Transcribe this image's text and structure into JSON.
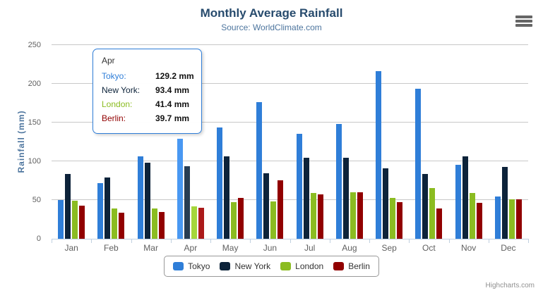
{
  "chart_data": {
    "type": "bar",
    "title": "Monthly Average Rainfall",
    "subtitle": "Source: WorldClimate.com",
    "xlabel": "",
    "ylabel": "Rainfall (mm)",
    "ylim": [
      0,
      250
    ],
    "y_ticks": [
      0,
      50,
      100,
      150,
      200,
      250
    ],
    "grid": true,
    "legend_position": "bottom",
    "categories": [
      "Jan",
      "Feb",
      "Mar",
      "Apr",
      "May",
      "Jun",
      "Jul",
      "Aug",
      "Sep",
      "Oct",
      "Nov",
      "Dec"
    ],
    "series": [
      {
        "name": "Tokyo",
        "color": "#2f7ed8",
        "hover_color": "#4998f2",
        "values": [
          49.9,
          71.5,
          106.4,
          129.2,
          144.0,
          176.0,
          135.6,
          148.5,
          216.4,
          194.1,
          95.6,
          54.4
        ]
      },
      {
        "name": "New York",
        "color": "#0d233a",
        "hover_color": "#273d54",
        "values": [
          83.6,
          78.8,
          98.5,
          93.4,
          106.0,
          84.5,
          105.0,
          104.3,
          91.2,
          83.5,
          106.6,
          92.3
        ]
      },
      {
        "name": "London",
        "color": "#8bbc21",
        "hover_color": "#a5d63b",
        "values": [
          48.9,
          38.8,
          39.3,
          41.4,
          47.0,
          48.3,
          59.0,
          59.6,
          52.4,
          65.2,
          59.3,
          51.2
        ]
      },
      {
        "name": "Berlin",
        "color": "#910000",
        "hover_color": "#ab1a1a",
        "values": [
          42.4,
          33.2,
          34.5,
          39.7,
          52.6,
          75.5,
          57.4,
          60.4,
          47.6,
          39.1,
          46.8,
          51.1
        ]
      }
    ],
    "hovered_category_index": 3,
    "hovered_category": "Apr"
  },
  "tooltip": {
    "header": "Apr",
    "rows": [
      {
        "label": "Tokyo:",
        "value": "129.2 mm",
        "color": "#2f7ed8"
      },
      {
        "label": "New York:",
        "value": "93.4 mm",
        "color": "#0d233a"
      },
      {
        "label": "London:",
        "value": "41.4 mm",
        "color": "#8bbc21"
      },
      {
        "label": "Berlin:",
        "value": "39.7 mm",
        "color": "#910000"
      }
    ]
  },
  "credits": "Highcharts.com",
  "icons": {
    "menu": "hamburger-icon"
  },
  "colors": {
    "title": "#274b6d",
    "subtitle": "#4d759e",
    "axis_label": "#606060",
    "gridline": "#c8c8c8",
    "axis_line": "#c0d0e0",
    "tooltip_border": "#2f7ed8",
    "legend_border": "#999999"
  }
}
